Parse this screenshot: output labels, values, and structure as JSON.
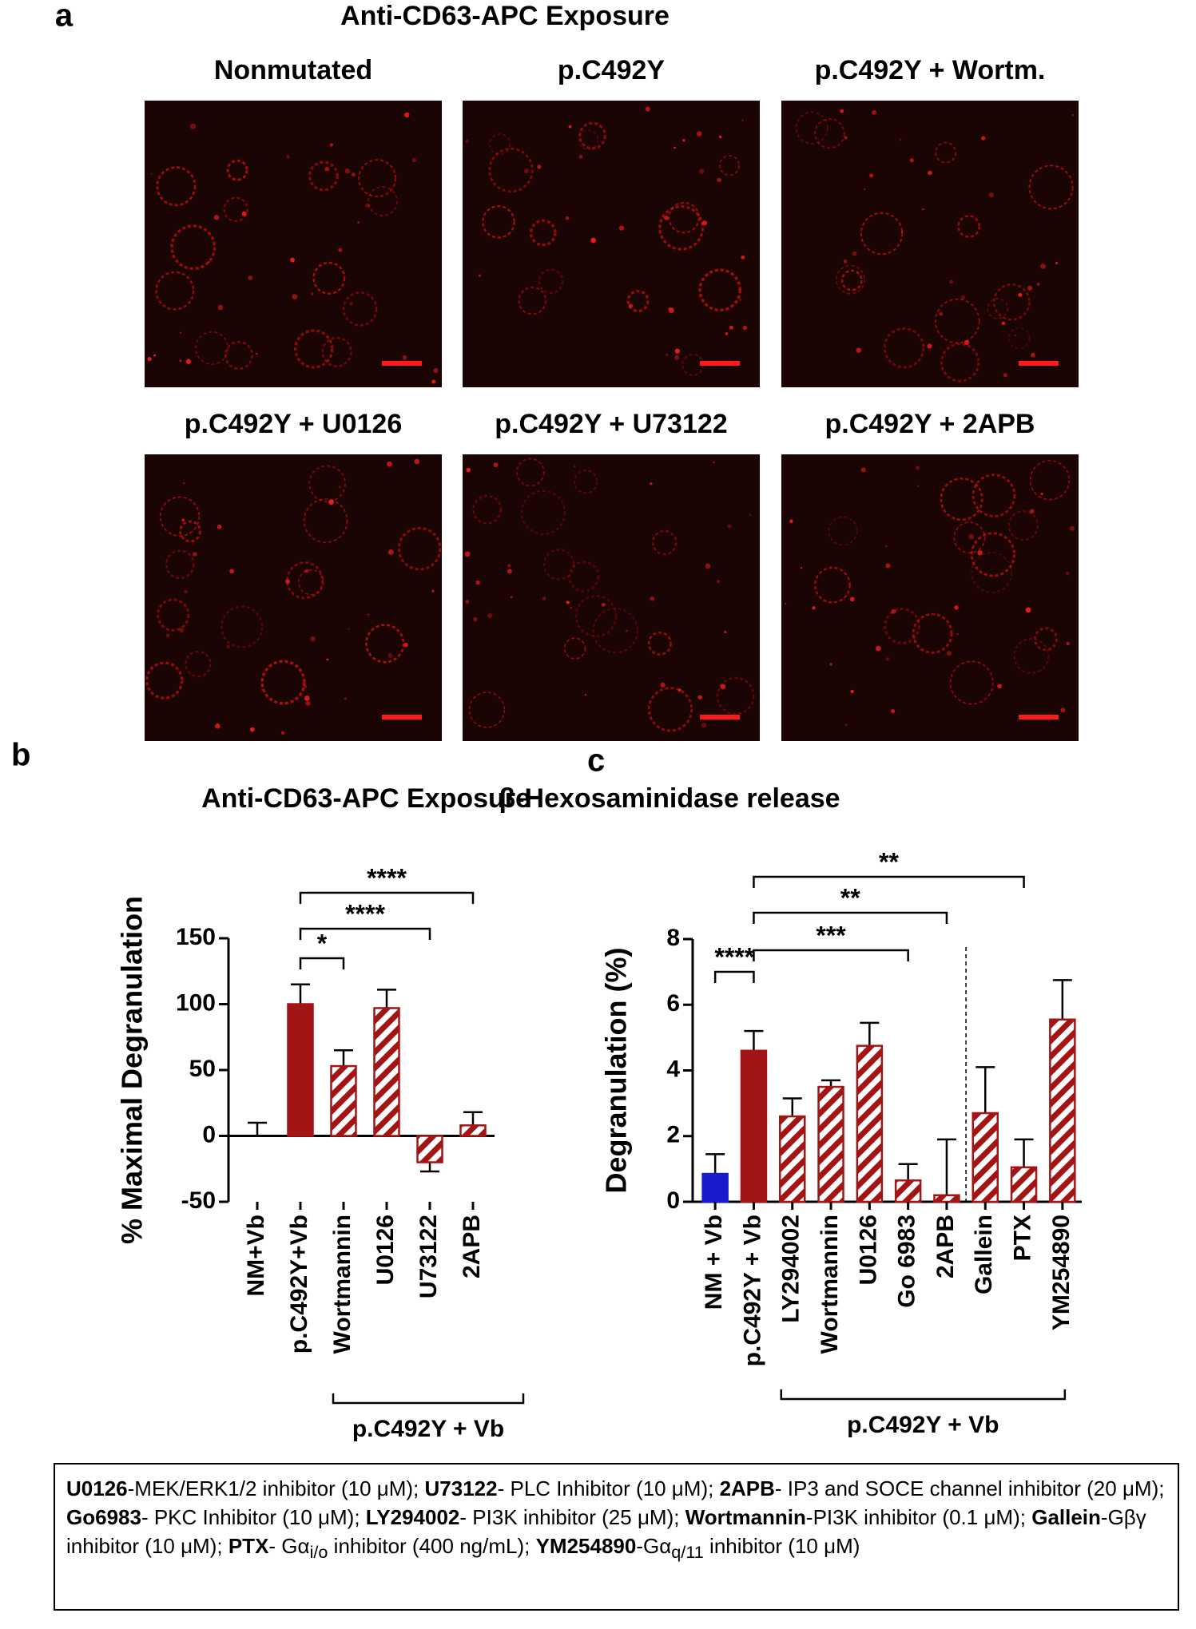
{
  "panel_a": {
    "label": "a",
    "title": "Anti-CD63-APC Exposure",
    "images": [
      "Nonmutated",
      "p.C492Y",
      "p.C492Y + Wortm.",
      "p.C492Y + U0126",
      "p.C492Y + U73122",
      "p.C492Y + 2APB"
    ]
  },
  "chart_data": [
    {
      "type": "bar",
      "panel": "b",
      "title": "Anti-CD63-APC Exposure",
      "y_label": "% Maximal Degranulation",
      "categories": [
        "NM+Vb",
        "p.C492Y+Vb",
        "Wortmannin",
        "U0126",
        "U73122",
        "2APB"
      ],
      "values": [
        0,
        100,
        53,
        97,
        -20,
        8
      ],
      "errors": [
        10,
        15,
        12,
        14,
        7,
        10
      ],
      "fills": [
        "open",
        "solid",
        "hatched",
        "hatched",
        "hatched",
        "hatched"
      ],
      "colors": [
        "#a31515",
        "#a31515",
        "#a31515",
        "#a31515",
        "#a31515",
        "#a31515"
      ],
      "ylim": [
        -50,
        150
      ],
      "yticks": [
        -50,
        0,
        50,
        100,
        150
      ],
      "significance": [
        {
          "from": 1,
          "to": 2,
          "label": "*"
        },
        {
          "from": 1,
          "to": 4,
          "label": "****"
        },
        {
          "from": 1,
          "to": 5,
          "label": "****"
        }
      ],
      "group": {
        "label": "p.C492Y + Vb",
        "from": 2,
        "to": 5
      }
    },
    {
      "type": "bar",
      "panel": "c",
      "title": "β-Hexosaminidase release",
      "y_label": "Degranulation (%)",
      "categories": [
        "NM + Vb",
        "p.C492Y + Vb",
        "LY294002",
        "Wortmannin",
        "U0126",
        "Go 6983",
        "2APB",
        "Gallein",
        "PTX",
        "YM254890"
      ],
      "values": [
        0.85,
        4.6,
        2.6,
        3.5,
        4.75,
        0.65,
        0.2,
        2.7,
        1.05,
        5.55
      ],
      "errors": [
        0.6,
        0.6,
        0.55,
        0.2,
        0.7,
        0.5,
        1.7,
        1.4,
        0.85,
        1.2
      ],
      "fills": [
        "solid",
        "solid",
        "hatched",
        "hatched",
        "hatched",
        "hatched",
        "hatched",
        "hatched",
        "hatched",
        "hatched"
      ],
      "colors": [
        "#1a1acc",
        "#a31515",
        "#a31515",
        "#a31515",
        "#a31515",
        "#a31515",
        "#a31515",
        "#a31515",
        "#a31515",
        "#a31515"
      ],
      "ylim": [
        0,
        8
      ],
      "yticks": [
        0,
        2,
        4,
        6,
        8
      ],
      "divider_after": 6,
      "significance": [
        {
          "from": 0,
          "to": 1,
          "label": "****"
        },
        {
          "from": 1,
          "to": 5,
          "label": "***"
        },
        {
          "from": 1,
          "to": 6,
          "label": "**"
        },
        {
          "from": 1,
          "to": 8,
          "label": "**"
        }
      ],
      "group": {
        "label": "p.C492Y + Vb",
        "from": 2,
        "to": 9
      }
    }
  ],
  "footnote": [
    {
      "name": "U0126",
      "text": "-MEK/ERK1/2 inhibitor (10 μM);"
    },
    {
      "name": "U73122",
      "text": "- PLC Inhibitor (10 μM);"
    },
    {
      "name": "2APB",
      "text": "- IP3 and SOCE channel inhibitor (20 μM);"
    },
    {
      "name": "Go6983",
      "text": "- PKC Inhibitor (10 μM);"
    },
    {
      "name": "LY294002",
      "text": "- PI3K  inhibitor (25 μM);"
    },
    {
      "name": "Wortmannin",
      "text": "-PI3K  inhibitor (0.1 μM);"
    },
    {
      "name": "Gallein",
      "text": "-Gβγ inhibitor (10 μM);"
    },
    {
      "name": "PTX",
      "text": "- Gα",
      "sub": "i/o",
      "after": " inhibitor (400 ng/mL);"
    },
    {
      "name": "YM254890",
      "text": "-Gα",
      "sub": "q/11",
      "after": " inhibitor (10 μM)"
    }
  ]
}
